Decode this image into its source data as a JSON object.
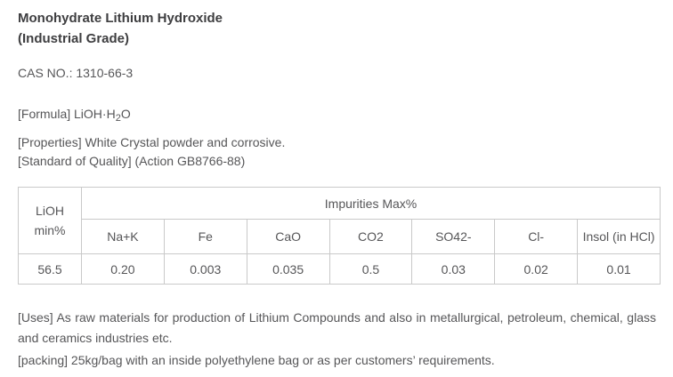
{
  "page": {
    "title_line1": "Monohydrate Lithium Hydroxide",
    "title_line2": "(Industrial Grade)",
    "cas_line": "CAS NO.: 1310-66-3",
    "formula": {
      "prefix": "[Formula] LiOH·H",
      "subscript": "2",
      "suffix": "O"
    },
    "properties_line": "[Properties] White Crystal powder and corrosive.",
    "standard_line": "[Standard of Quality] (Action GB8766-88)",
    "uses_line": "[Uses] As raw materials for production of Lithium Compounds and also in metallurgical, petroleum, chemical, glass and ceramics industries etc.",
    "packing_line": "[packing] 25kg/bag with an inside polyethylene bag or as per customers’ requirements."
  },
  "table": {
    "col1_header_line1": "LiOH",
    "col1_header_line2": "min%",
    "impurities_header": "Impurities Max%",
    "impurity_columns": [
      "Na+K",
      "Fe",
      "CaO",
      "CO2",
      "SO42-",
      "Cl-",
      "Insol (in HCl)"
    ],
    "values": [
      "56.5",
      "0.20",
      "0.003",
      "0.035",
      "0.5",
      "0.03",
      "0.02",
      "0.01"
    ]
  },
  "colors": {
    "body_text": "#565658",
    "title_text": "#3e3e40",
    "table_border": "#c9c9c9",
    "background": "#ffffff"
  }
}
